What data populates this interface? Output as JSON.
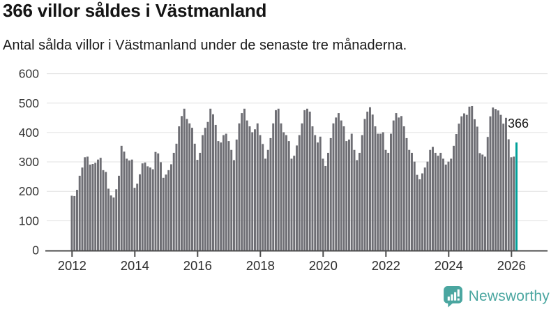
{
  "header": {
    "title": "366 villor såldes i Västmanland",
    "subtitle": "Antal sålda villor i Västmanland under de senaste tre månaderna."
  },
  "chart_data": {
    "type": "bar",
    "title": "366 villor såldes i Västmanland",
    "subtitle": "Antal sålda villor i Västmanland under de senaste tre månaderna.",
    "xlabel": "",
    "ylabel": "",
    "ylim": [
      0,
      600
    ],
    "yticks": [
      0,
      100,
      200,
      300,
      400,
      500,
      600
    ],
    "xticks": [
      "2012",
      "2014",
      "2016",
      "2018",
      "2020",
      "2022",
      "2024",
      "2026"
    ],
    "frequency": "monthly",
    "x_start_year": 2012,
    "grid": true,
    "legend": false,
    "bar_color": "#6e6e74",
    "highlight_color": "#00a09a",
    "highlight_last_bar": true,
    "highlight_value": 366,
    "highlight_label": "366",
    "values": [
      185,
      184,
      205,
      253,
      281,
      316,
      318,
      291,
      293,
      297,
      308,
      314,
      272,
      266,
      209,
      186,
      179,
      207,
      253,
      355,
      335,
      311,
      305,
      308,
      212,
      226,
      258,
      295,
      298,
      285,
      281,
      275,
      334,
      329,
      299,
      246,
      257,
      272,
      292,
      331,
      362,
      421,
      456,
      481,
      446,
      431,
      416,
      362,
      307,
      331,
      391,
      416,
      436,
      481,
      462,
      426,
      371,
      366,
      391,
      396,
      371,
      341,
      306,
      376,
      431,
      466,
      481,
      441,
      421,
      401,
      411,
      431,
      391,
      361,
      311,
      341,
      381,
      431,
      476,
      481,
      431,
      401,
      391,
      371,
      311,
      321,
      356,
      391,
      431,
      476,
      481,
      471,
      421,
      391,
      366,
      386,
      311,
      286,
      331,
      381,
      431,
      451,
      466,
      441,
      421,
      371,
      376,
      396,
      341,
      306,
      331,
      391,
      446,
      471,
      486,
      461,
      421,
      396,
      396,
      401,
      341,
      331,
      396,
      441,
      466,
      451,
      456,
      421,
      381,
      341,
      331,
      301,
      256,
      241,
      261,
      281,
      301,
      341,
      351,
      331,
      321,
      331,
      311,
      291,
      301,
      311,
      355,
      395,
      430,
      455,
      465,
      460,
      488,
      490,
      445,
      420,
      330,
      325,
      318,
      385,
      455,
      485,
      480,
      475,
      460,
      430,
      450,
      377,
      316,
      318,
      366
    ]
  },
  "footer": {
    "brand": "Newsworthy",
    "brand_color": "#4aa6a0",
    "logo_icon": "bar-chart-speech-bubble-icon"
  },
  "colors": {
    "axis": "#4b4b4b",
    "gridline": "#e0e0e0",
    "tick_text": "#2d2d2d",
    "y_text": "#333333"
  }
}
